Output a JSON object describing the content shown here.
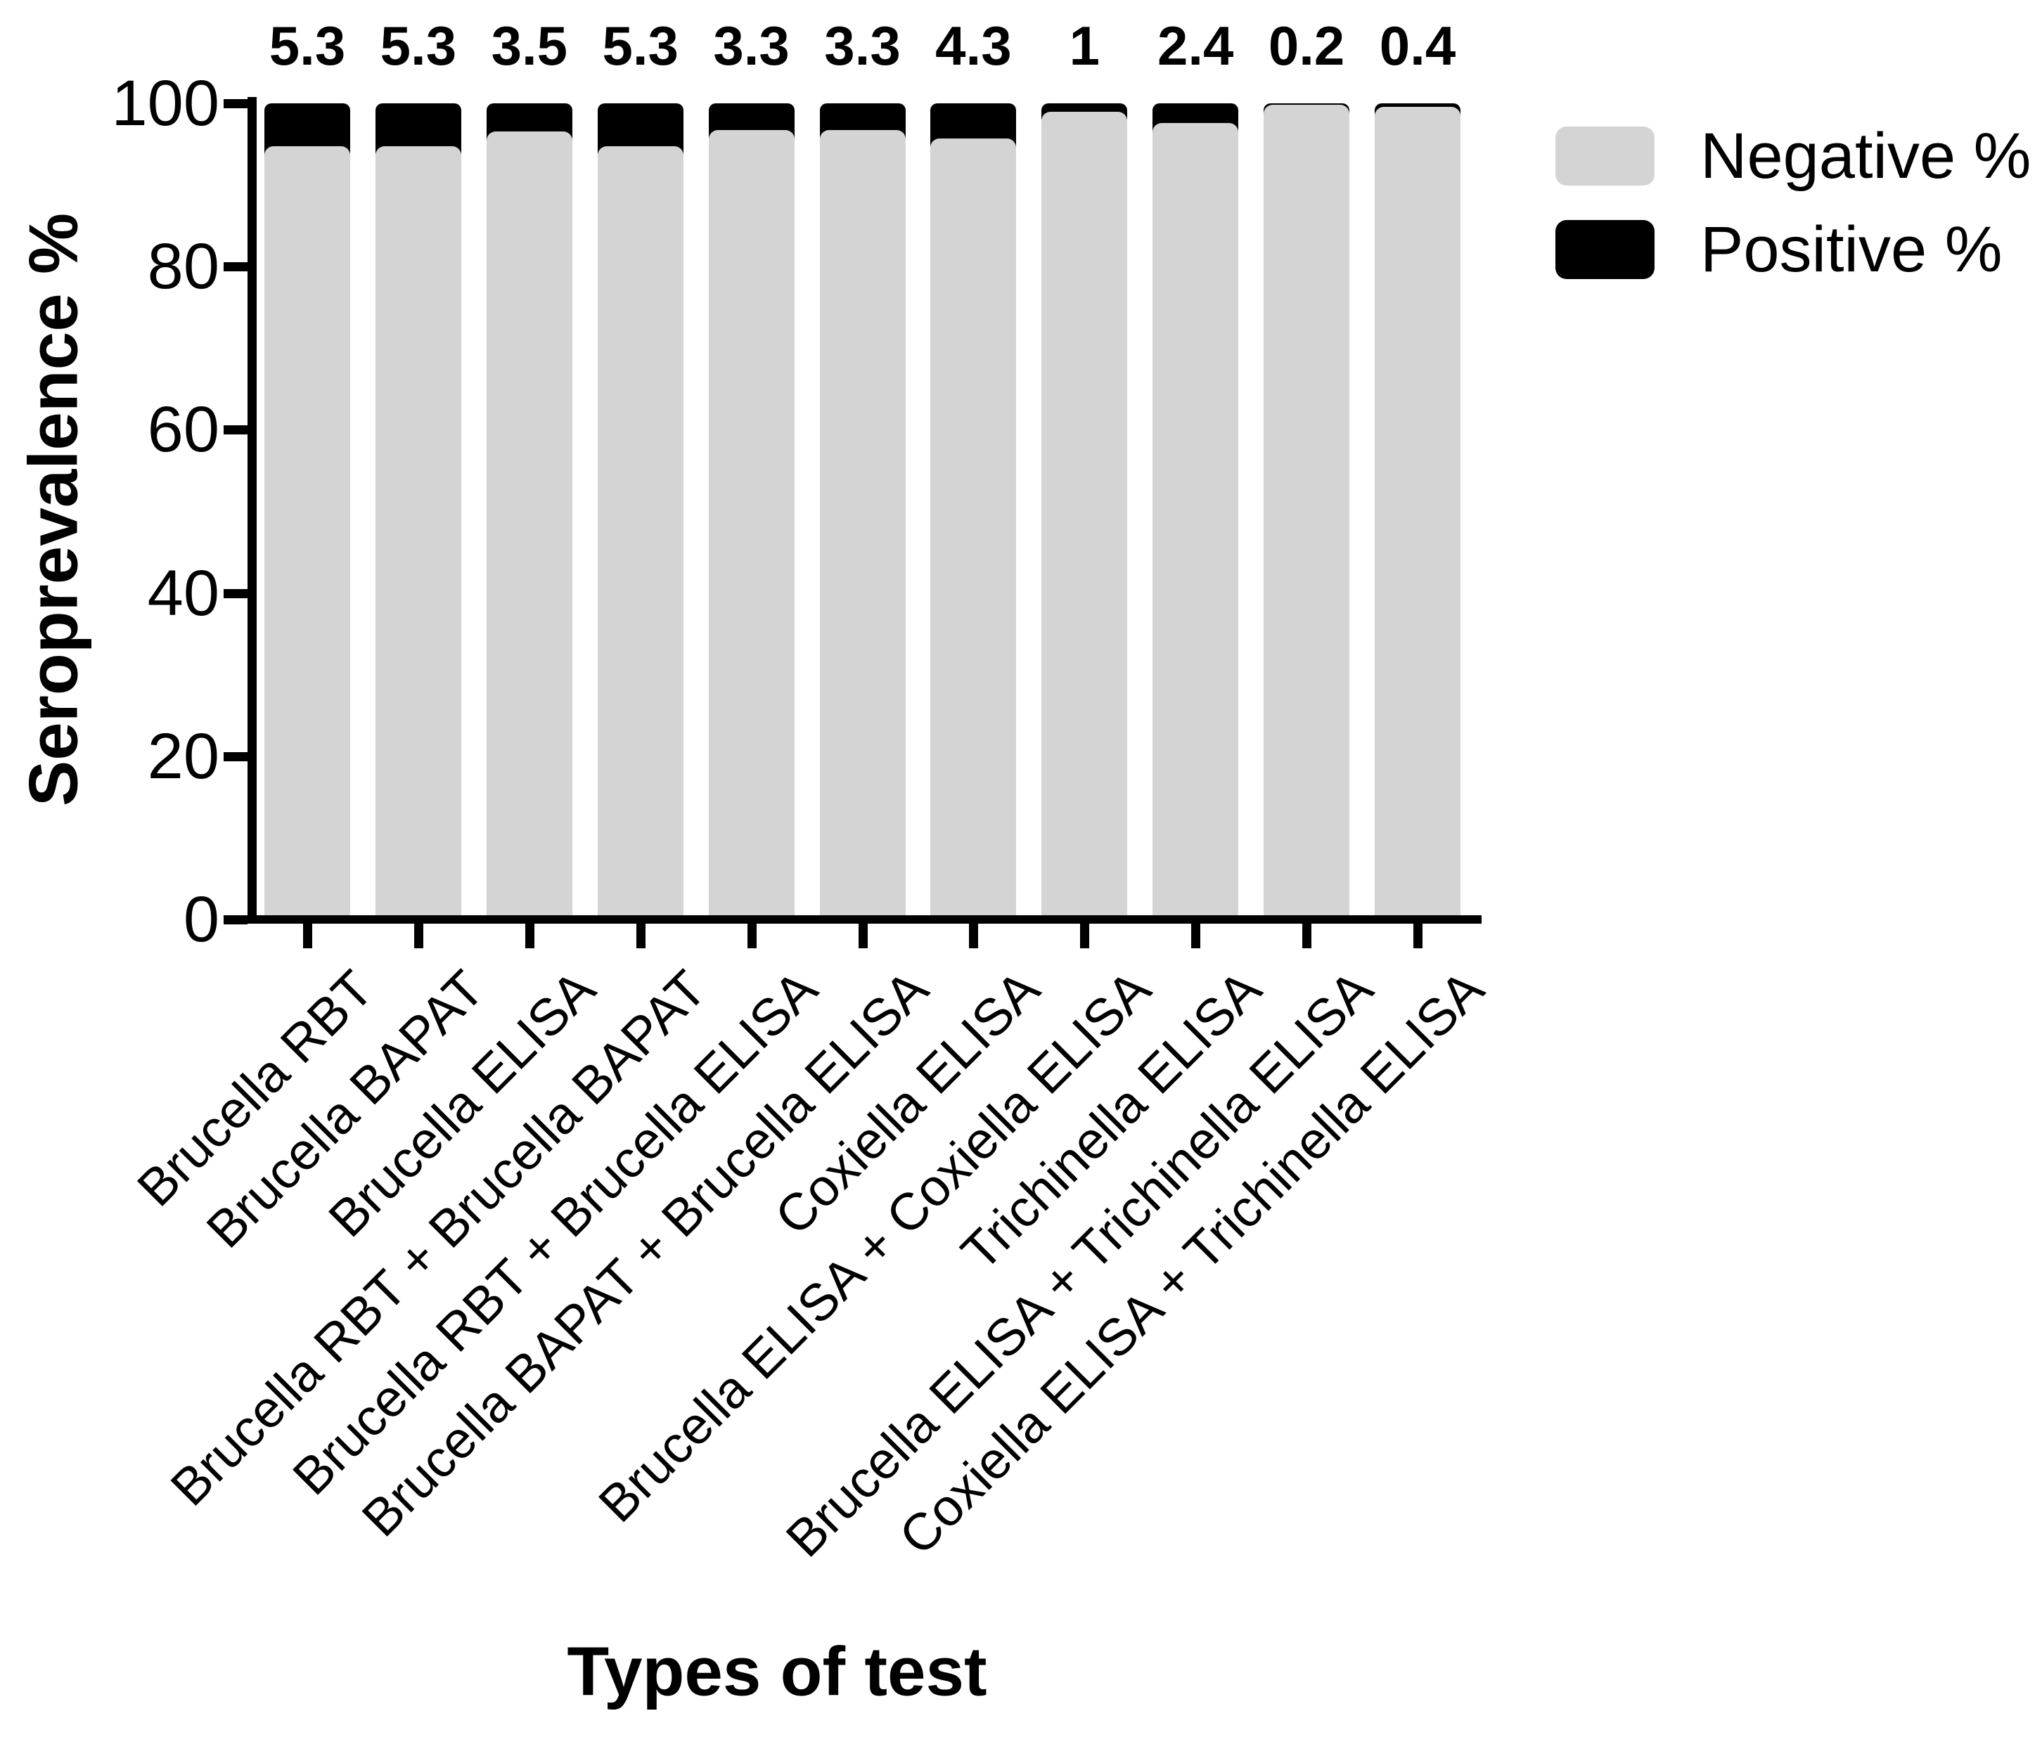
{
  "chart_data": {
    "type": "bar",
    "stacked": true,
    "title": "",
    "xlabel": "Types of test",
    "ylabel": "Seroprevalence %",
    "ylim": [
      0,
      100
    ],
    "yticks": [
      0,
      20,
      40,
      60,
      80,
      100
    ],
    "grid": false,
    "legend_position": "top-right",
    "categories": [
      "Brucella RBT",
      "Brucella BAPAT",
      "Brucella ELISA",
      "Brucella RBT + Brucella BAPAT",
      "Brucella RBT + Brucella ELISA",
      "Brucella BAPAT + Brucella ELISA",
      "Coxiella ELISA",
      "Brucella  ELISA + Coxiella ELISA",
      "Trichinella ELISA",
      "Brucella ELISA + Trichinella ELISA",
      "Coxiella ELISA + Trichinella ELISA"
    ],
    "series": [
      {
        "name": "Negative %",
        "color": "#d4d4d4",
        "values": [
          94.7,
          94.7,
          96.5,
          94.7,
          96.7,
          96.7,
          95.7,
          99.0,
          97.6,
          99.8,
          99.6
        ]
      },
      {
        "name": "Positive %",
        "color": "#000000",
        "values": [
          5.3,
          5.3,
          3.5,
          5.3,
          3.3,
          3.3,
          4.3,
          1,
          2.4,
          0.2,
          0.4
        ]
      }
    ],
    "bar_value_labels": [
      "5.3",
      "5.3",
      "3.5",
      "5.3",
      "3.3",
      "3.3",
      "4.3",
      "1",
      "2.4",
      "0.2",
      "0.4"
    ]
  }
}
